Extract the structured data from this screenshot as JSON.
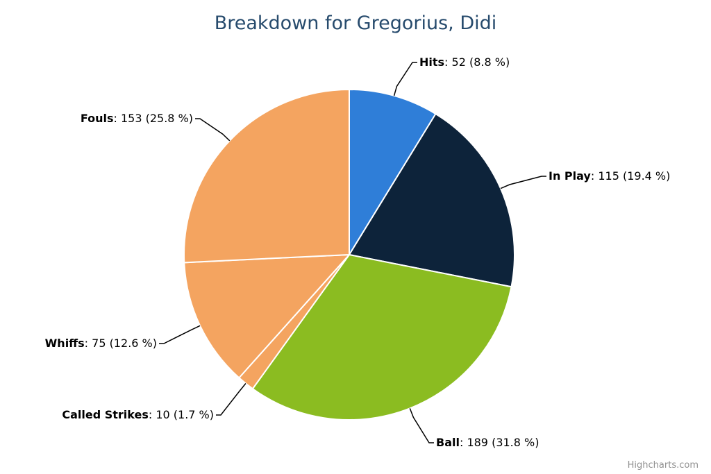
{
  "chart_data": {
    "type": "pie",
    "title": "Breakdown for Gregorius, Didi",
    "slices": [
      {
        "name": "Hits",
        "value": 52,
        "percent": "8.8 %",
        "color": "#2f7ed8"
      },
      {
        "name": "In Play",
        "value": 115,
        "percent": "19.4 %",
        "color": "#0d233a"
      },
      {
        "name": "Ball",
        "value": 189,
        "percent": "31.8 %",
        "color": "#8bbc21"
      },
      {
        "name": "Called Strikes",
        "value": 10,
        "percent": "1.7 %",
        "color": "#f4a460"
      },
      {
        "name": "Whiffs",
        "value": 75,
        "percent": "12.6 %",
        "color": "#f4a460"
      },
      {
        "name": "Fouls",
        "value": 153,
        "percent": "25.8 %",
        "color": "#f4a460"
      }
    ]
  },
  "credits": "Highcharts.com"
}
